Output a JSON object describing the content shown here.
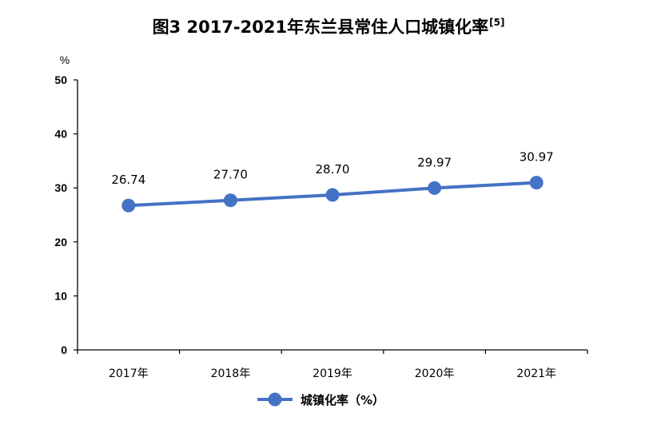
{
  "chart_data": {
    "type": "line",
    "title": "图3   2017-2021年东兰县常住人口城镇化率",
    "title_superscript": "[5]",
    "y_unit": "%",
    "categories": [
      "2017年",
      "2018年",
      "2019年",
      "2020年",
      "2021年"
    ],
    "series": [
      {
        "name": "城镇化率（%）",
        "values": [
          26.74,
          27.7,
          28.7,
          29.97,
          30.97
        ],
        "labels": [
          "26.74",
          "27.70",
          "28.70",
          "29.97",
          "30.97"
        ],
        "color": "#4472C4"
      }
    ],
    "ylim": [
      0,
      50
    ],
    "yticks": [
      0,
      10,
      20,
      30,
      40,
      50
    ],
    "grid": false,
    "legend": "bottom-center"
  }
}
